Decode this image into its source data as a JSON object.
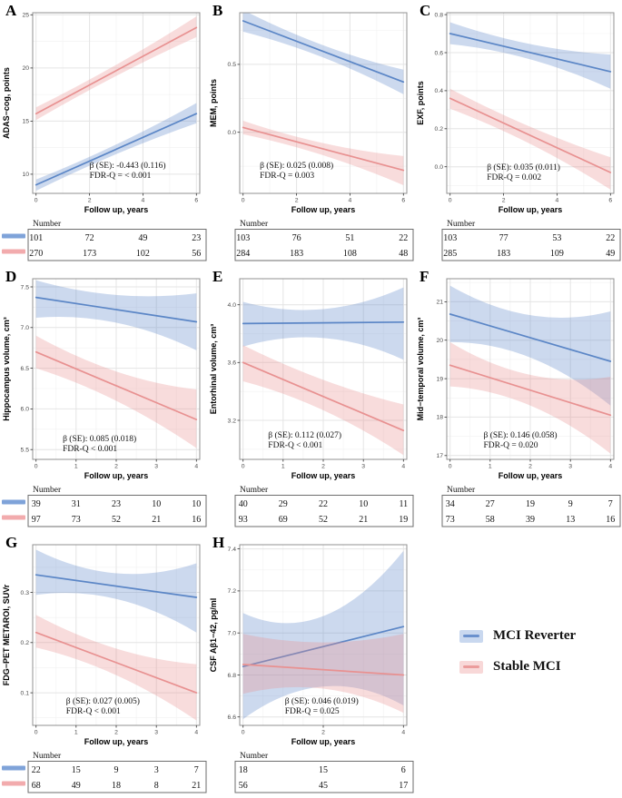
{
  "figure": {
    "xlabel_shared": "Follow up, years",
    "number_header": "Number"
  },
  "colors": {
    "line_blue": "#5b86c6",
    "line_pink": "#e89191",
    "fill_blue": "rgba(99,139,204,0.33)",
    "fill_pink": "rgba(231,143,143,0.31)",
    "table_swatch_blue": "#7fa3d9",
    "table_swatch_pink": "#f2abad",
    "grid_major": "#e4e4e4",
    "grid_minor": "#f1f1f1",
    "panel_border": "#909090",
    "tick_mark": "#333333",
    "tick_label": "#4d4d4d",
    "text": "#111111",
    "table_border": "#6e6e6e"
  },
  "legend": {
    "items": [
      {
        "label": "MCI Reverter",
        "fill": "#c9d8ef",
        "line": "#6b91cd"
      },
      {
        "label": "Stable MCI",
        "fill": "#f8d8d8",
        "line": "#eb9c9c"
      }
    ]
  },
  "chart_data": [
    {
      "id": "A",
      "type": "line",
      "ylabel": "ADAS−cog, points",
      "xlabel": "Follow up, years",
      "x_range": [
        0,
        6
      ],
      "xticks": [
        0,
        2,
        4,
        6
      ],
      "xtick_labels": [
        "0",
        "2",
        "4",
        "6"
      ],
      "ylim": [
        8.2,
        25.2
      ],
      "yticks": [
        10,
        15,
        20,
        25
      ],
      "ytick_labels": [
        "10",
        "15",
        "20",
        "25"
      ],
      "series": [
        {
          "name": "MCI Reverter",
          "line": [
            9.0,
            15.7
          ],
          "ci_lo": [
            8.45,
            11.9,
            14.8
          ],
          "ci_hi": [
            9.5,
            12.8,
            16.7
          ]
        },
        {
          "name": "Stable MCI",
          "line": [
            15.7,
            23.8
          ],
          "ci_lo": [
            15.1,
            19.25,
            22.9
          ],
          "ci_hi": [
            16.3,
            20.3,
            24.85
          ]
        }
      ],
      "annotation": {
        "lines": [
          "β (SE): -0.443 (0.116)",
          "FDR-Q = < 0.001"
        ],
        "x": 0.34,
        "y": 0.86
      },
      "table": {
        "header": "Number",
        "col_x": [
          0,
          2,
          4,
          6
        ],
        "rows": [
          [
            "101",
            "72",
            "49",
            "23"
          ],
          [
            "270",
            "173",
            "102",
            "56"
          ]
        ],
        "swatches": true
      }
    },
    {
      "id": "B",
      "type": "line",
      "ylabel": "MEM, points",
      "xlabel": "Follow up, years",
      "x_range": [
        0,
        6
      ],
      "xticks": [
        0,
        2,
        4,
        6
      ],
      "xtick_labels": [
        "0",
        "2",
        "4",
        "6"
      ],
      "ylim": [
        -0.45,
        0.88
      ],
      "yticks": [
        0,
        0.5
      ],
      "ytick_labels": [
        "0.0",
        "0.5"
      ],
      "series": [
        {
          "name": "MCI Reverter",
          "line": [
            0.82,
            0.37
          ],
          "ci_lo": [
            0.74,
            0.55,
            0.28
          ],
          "ci_hi": [
            0.9,
            0.64,
            0.46
          ]
        },
        {
          "name": "Stable MCI",
          "line": [
            0.035,
            -0.28
          ],
          "ci_lo": [
            -0.015,
            -0.17,
            -0.39
          ],
          "ci_hi": [
            0.085,
            -0.08,
            -0.175
          ]
        }
      ],
      "annotation": {
        "lines": [
          "β (SE): 0.025 (0.008)",
          "FDR-Q = 0.003"
        ],
        "x": 0.12,
        "y": 0.86
      },
      "table": {
        "header": "Number",
        "col_x": [
          0,
          2,
          4,
          6
        ],
        "rows": [
          [
            "103",
            "76",
            "51",
            "22"
          ],
          [
            "284",
            "183",
            "108",
            "48"
          ]
        ],
        "swatches": false
      }
    },
    {
      "id": "C",
      "type": "line",
      "ylabel": "EXF, points",
      "xlabel": "Follow up, years",
      "x_range": [
        0,
        6
      ],
      "xticks": [
        0,
        2,
        4,
        6
      ],
      "xtick_labels": [
        "0",
        "2",
        "4",
        "6"
      ],
      "ylim": [
        -0.14,
        0.81
      ],
      "yticks": [
        0,
        0.2,
        0.4,
        0.6,
        0.8
      ],
      "ytick_labels": [
        "0.0",
        "0.2",
        "0.4",
        "0.6",
        "0.8"
      ],
      "series": [
        {
          "name": "MCI Reverter",
          "line": [
            0.7,
            0.5
          ],
          "ci_lo": [
            0.645,
            0.565,
            0.41
          ],
          "ci_hi": [
            0.76,
            0.645,
            0.59
          ]
        },
        {
          "name": "Stable MCI",
          "line": [
            0.36,
            -0.03
          ],
          "ci_lo": [
            0.305,
            0.12,
            -0.12
          ],
          "ci_hi": [
            0.41,
            0.21,
            0.05
          ]
        }
      ],
      "annotation": {
        "lines": [
          "β (SE): 0.035 (0.011)",
          "FDR-Q = 0.002"
        ],
        "x": 0.24,
        "y": 0.87
      },
      "table": {
        "header": "Number",
        "col_x": [
          0,
          2,
          4,
          6
        ],
        "rows": [
          [
            "103",
            "77",
            "53",
            "22"
          ],
          [
            "285",
            "183",
            "109",
            "49"
          ]
        ],
        "swatches": false
      }
    },
    {
      "id": "D",
      "type": "line",
      "ylabel": "Hippocampus volume, cm³",
      "xlabel": "Follow up, years",
      "x_range": [
        0,
        4
      ],
      "xticks": [
        0,
        1,
        2,
        3,
        4
      ],
      "xtick_labels": [
        "0",
        "1",
        "2",
        "3",
        "4"
      ],
      "ylim": [
        5.38,
        7.6
      ],
      "yticks": [
        5.5,
        6.0,
        6.5,
        7.0,
        7.5
      ],
      "ytick_labels": [
        "5.5",
        "6.0",
        "6.5",
        "7.0",
        "7.5"
      ],
      "series": [
        {
          "name": "MCI Reverter",
          "line": [
            7.37,
            7.07
          ],
          "ci_lo": [
            7.12,
            7.06,
            6.72
          ],
          "ci_hi": [
            7.58,
            7.4,
            7.42
          ]
        },
        {
          "name": "Stable MCI",
          "line": [
            6.7,
            5.87
          ],
          "ci_lo": [
            6.5,
            6.1,
            5.52
          ],
          "ci_hi": [
            6.9,
            6.46,
            6.24
          ]
        }
      ],
      "annotation": {
        "lines": [
          "β (SE): 0.085 (0.018)",
          "FDR-Q < 0.001"
        ],
        "x": 0.18,
        "y": 0.9
      },
      "table": {
        "header": "Number",
        "col_x": [
          0,
          1,
          2,
          3,
          4
        ],
        "rows": [
          [
            "39",
            "31",
            "23",
            "10",
            "10"
          ],
          [
            "97",
            "73",
            "52",
            "21",
            "16"
          ]
        ],
        "swatches": true
      }
    },
    {
      "id": "E",
      "type": "line",
      "ylabel": "Entorhinal volume, cm³",
      "xlabel": "Follow up, years",
      "x_range": [
        0,
        4
      ],
      "xticks": [
        0,
        1,
        2,
        3,
        4
      ],
      "xtick_labels": [
        "0",
        "1",
        "2",
        "3",
        "4"
      ],
      "ylim": [
        2.93,
        4.18
      ],
      "yticks": [
        3.2,
        3.6,
        4.0
      ],
      "ytick_labels": [
        "3.2",
        "3.6",
        "4.0"
      ],
      "series": [
        {
          "name": "MCI Reverter",
          "line": [
            3.87,
            3.88
          ],
          "ci_lo": [
            3.71,
            3.77,
            3.62
          ],
          "ci_hi": [
            4.02,
            3.97,
            4.12
          ]
        },
        {
          "name": "Stable MCI",
          "line": [
            3.6,
            3.13
          ],
          "ci_lo": [
            3.47,
            3.27,
            2.96
          ],
          "ci_hi": [
            3.72,
            3.48,
            3.31
          ]
        }
      ],
      "annotation": {
        "lines": [
          "β (SE): 0.112 (0.027)",
          "FDR-Q < 0.001"
        ],
        "x": 0.17,
        "y": 0.88
      },
      "table": {
        "header": "Number",
        "col_x": [
          0,
          1,
          2,
          3,
          4
        ],
        "rows": [
          [
            "40",
            "29",
            "22",
            "10",
            "11"
          ],
          [
            "93",
            "69",
            "52",
            "21",
            "19"
          ]
        ],
        "swatches": false
      }
    },
    {
      "id": "F",
      "type": "line",
      "ylabel": "Mid−temporal volume, cm³",
      "xlabel": "Follow up, years",
      "x_range": [
        0,
        4
      ],
      "xticks": [
        0,
        1,
        2,
        3,
        4
      ],
      "xtick_labels": [
        "0",
        "1",
        "2",
        "3",
        "4"
      ],
      "ylim": [
        16.9,
        21.6
      ],
      "yticks": [
        17,
        18,
        19,
        20,
        21
      ],
      "ytick_labels": [
        "17",
        "18",
        "19",
        "20",
        "21"
      ],
      "series": [
        {
          "name": "MCI Reverter",
          "line": [
            20.68,
            19.45
          ],
          "ci_lo": [
            19.95,
            19.55,
            18.3
          ],
          "ci_hi": [
            21.42,
            20.65,
            20.75
          ]
        },
        {
          "name": "Stable MCI",
          "line": [
            19.35,
            18.05
          ],
          "ci_lo": [
            18.8,
            18.3,
            17.05
          ],
          "ci_hi": [
            19.95,
            19.1,
            19.05
          ]
        }
      ],
      "annotation": {
        "lines": [
          "β (SE): 0.146 (0.058)",
          "FDR-Q = 0.020"
        ],
        "x": 0.22,
        "y": 0.88
      },
      "table": {
        "header": "Number",
        "col_x": [
          0,
          1,
          2,
          3,
          4
        ],
        "rows": [
          [
            "34",
            "27",
            "19",
            "9",
            "7"
          ],
          [
            "73",
            "58",
            "39",
            "13",
            "16"
          ]
        ],
        "swatches": false
      }
    },
    {
      "id": "G",
      "type": "line",
      "ylabel": "FDG−PET METAROI, SUVr",
      "xlabel": "Follow up, years",
      "x_range": [
        0,
        4
      ],
      "xticks": [
        0,
        1,
        2,
        3,
        4
      ],
      "xtick_labels": [
        "0",
        "1",
        "2",
        "3",
        "4"
      ],
      "ylim": [
        0.035,
        0.395
      ],
      "yticks": [
        0.1,
        0.2,
        0.3
      ],
      "ytick_labels": [
        "0.1",
        "0.2",
        "0.3"
      ],
      "series": [
        {
          "name": "MCI Reverter",
          "line": [
            0.335,
            0.29
          ],
          "ci_lo": [
            0.295,
            0.287,
            0.22
          ],
          "ci_hi": [
            0.385,
            0.338,
            0.358
          ]
        },
        {
          "name": "Stable MCI",
          "line": [
            0.22,
            0.1
          ],
          "ci_lo": [
            0.19,
            0.135,
            0.045
          ],
          "ci_hi": [
            0.255,
            0.188,
            0.157
          ]
        }
      ],
      "annotation": {
        "lines": [
          "β (SE): 0.027 (0.005)",
          "FDR-Q < 0.001"
        ],
        "x": 0.2,
        "y": 0.88
      },
      "table": {
        "header": "Number",
        "col_x": [
          0,
          1,
          2,
          3,
          4
        ],
        "rows": [
          [
            "22",
            "15",
            "9",
            "3",
            "7"
          ],
          [
            "68",
            "49",
            "18",
            "8",
            "21"
          ]
        ],
        "swatches": true
      }
    },
    {
      "id": "H",
      "type": "line",
      "ylabel": "CSF Aβ1−42, pg/ml",
      "xlabel": "Follow up, years",
      "x_range": [
        0,
        4
      ],
      "xticks": [
        0,
        2,
        4
      ],
      "xtick_labels": [
        "0",
        "2",
        "4"
      ],
      "x_minor_step": 0.5,
      "ylim": [
        6.56,
        7.42
      ],
      "yticks": [
        6.6,
        6.8,
        7.0,
        7.2,
        7.4
      ],
      "ytick_labels": [
        "6.6",
        "6.8",
        "7.0",
        "7.2",
        "7.4"
      ],
      "series": [
        {
          "name": "MCI Reverter",
          "line": [
            6.84,
            7.03
          ],
          "ci_lo": [
            6.59,
            6.745,
            6.655
          ],
          "ci_hi": [
            7.095,
            7.08,
            7.39
          ]
        },
        {
          "name": "Stable MCI",
          "line": [
            6.85,
            6.8
          ],
          "ci_lo": [
            6.71,
            6.735,
            6.62
          ],
          "ci_hi": [
            6.995,
            6.955,
            6.995
          ]
        }
      ],
      "annotation": {
        "lines": [
          "β (SE): 0.046 (0.019)",
          "FDR-Q = 0.025"
        ],
        "x": 0.27,
        "y": 0.88
      },
      "table": {
        "header": "Number",
        "col_x": [
          0,
          2,
          4
        ],
        "rows": [
          [
            "18",
            "15",
            "6"
          ],
          [
            "56",
            "45",
            "17"
          ]
        ],
        "swatches": false
      }
    }
  ]
}
